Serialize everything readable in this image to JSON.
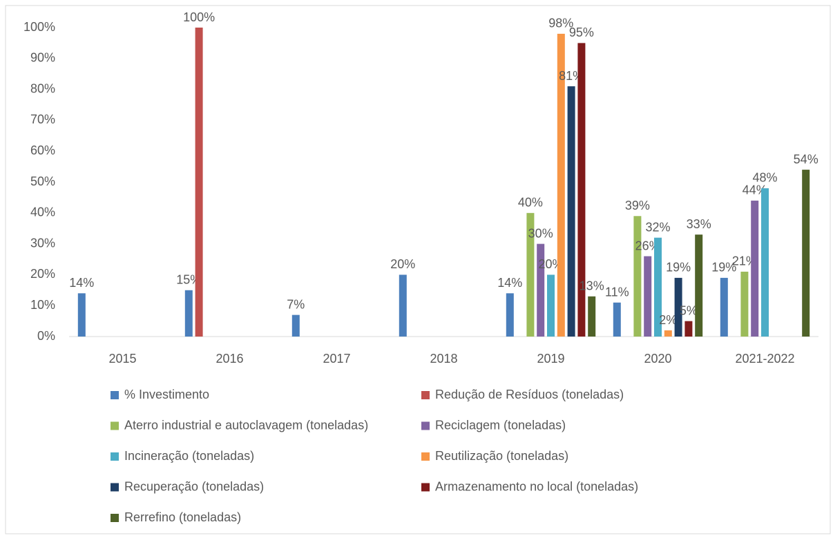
{
  "chart_data": {
    "type": "bar",
    "categories": [
      "2015",
      "2016",
      "2017",
      "2018",
      "2019",
      "2020",
      "2021-2022"
    ],
    "ylim": [
      0,
      100
    ],
    "yticks": [
      {
        "value": 0,
        "label": "0%"
      },
      {
        "value": 10,
        "label": "10%"
      },
      {
        "value": 20,
        "label": "20%"
      },
      {
        "value": 30,
        "label": "30%"
      },
      {
        "value": 40,
        "label": "40%"
      },
      {
        "value": 50,
        "label": "50%"
      },
      {
        "value": 60,
        "label": "60%"
      },
      {
        "value": 70,
        "label": "70%"
      },
      {
        "value": 80,
        "label": "80%"
      },
      {
        "value": 90,
        "label": "90%"
      },
      {
        "value": 100,
        "label": "100%"
      }
    ],
    "grid": false,
    "legend": "bottom",
    "series": [
      {
        "name": "% Investimento",
        "color": "#4a7ebb",
        "values": [
          14,
          15,
          7,
          20,
          14,
          11,
          19
        ],
        "value_labels": [
          "14%",
          "15%",
          "7%",
          "20%",
          "14%",
          "11%",
          "19%"
        ]
      },
      {
        "name": "Redução de Resíduos (toneladas)",
        "color": "#c0504d",
        "values": [
          null,
          100,
          null,
          null,
          null,
          null,
          null
        ],
        "value_labels": [
          null,
          "100%",
          null,
          null,
          null,
          null,
          null
        ]
      },
      {
        "name": "Aterro industrial e autoclavagem (toneladas)",
        "color": "#9bbb59",
        "values": [
          null,
          null,
          null,
          null,
          40,
          39,
          21
        ],
        "value_labels": [
          null,
          null,
          null,
          null,
          "40%",
          "39%",
          "21%"
        ]
      },
      {
        "name": "Reciclagem (toneladas)",
        "color": "#8064a2",
        "values": [
          null,
          null,
          null,
          null,
          30,
          26,
          44
        ],
        "value_labels": [
          null,
          null,
          null,
          null,
          "30%",
          "26%",
          "44%"
        ]
      },
      {
        "name": "Incineração (toneladas)",
        "color": "#4bacc6",
        "values": [
          null,
          null,
          null,
          null,
          20,
          32,
          48
        ],
        "value_labels": [
          null,
          null,
          null,
          null,
          "20%",
          "32%",
          "48%"
        ]
      },
      {
        "name": "Reutilização (toneladas)",
        "color": "#f79646",
        "values": [
          null,
          null,
          null,
          null,
          98,
          2,
          null
        ],
        "value_labels": [
          null,
          null,
          null,
          null,
          "98%",
          "2%",
          null
        ]
      },
      {
        "name": "Recuperação (toneladas)",
        "color": "#1f3f66",
        "values": [
          null,
          null,
          null,
          null,
          81,
          19,
          null
        ],
        "value_labels": [
          null,
          null,
          null,
          null,
          "81%",
          "19%",
          null
        ]
      },
      {
        "name": "Armazenamento no local (toneladas)",
        "color": "#7f1b1b",
        "values": [
          null,
          null,
          null,
          null,
          95,
          5,
          null
        ],
        "value_labels": [
          null,
          null,
          null,
          null,
          "95%",
          "5%",
          null
        ]
      },
      {
        "name": "Rerrefino (toneladas)",
        "color": "#4f6228",
        "values": [
          null,
          null,
          null,
          null,
          13,
          33,
          54
        ],
        "value_labels": [
          null,
          null,
          null,
          null,
          "13%",
          "33%",
          "54%"
        ]
      }
    ]
  }
}
